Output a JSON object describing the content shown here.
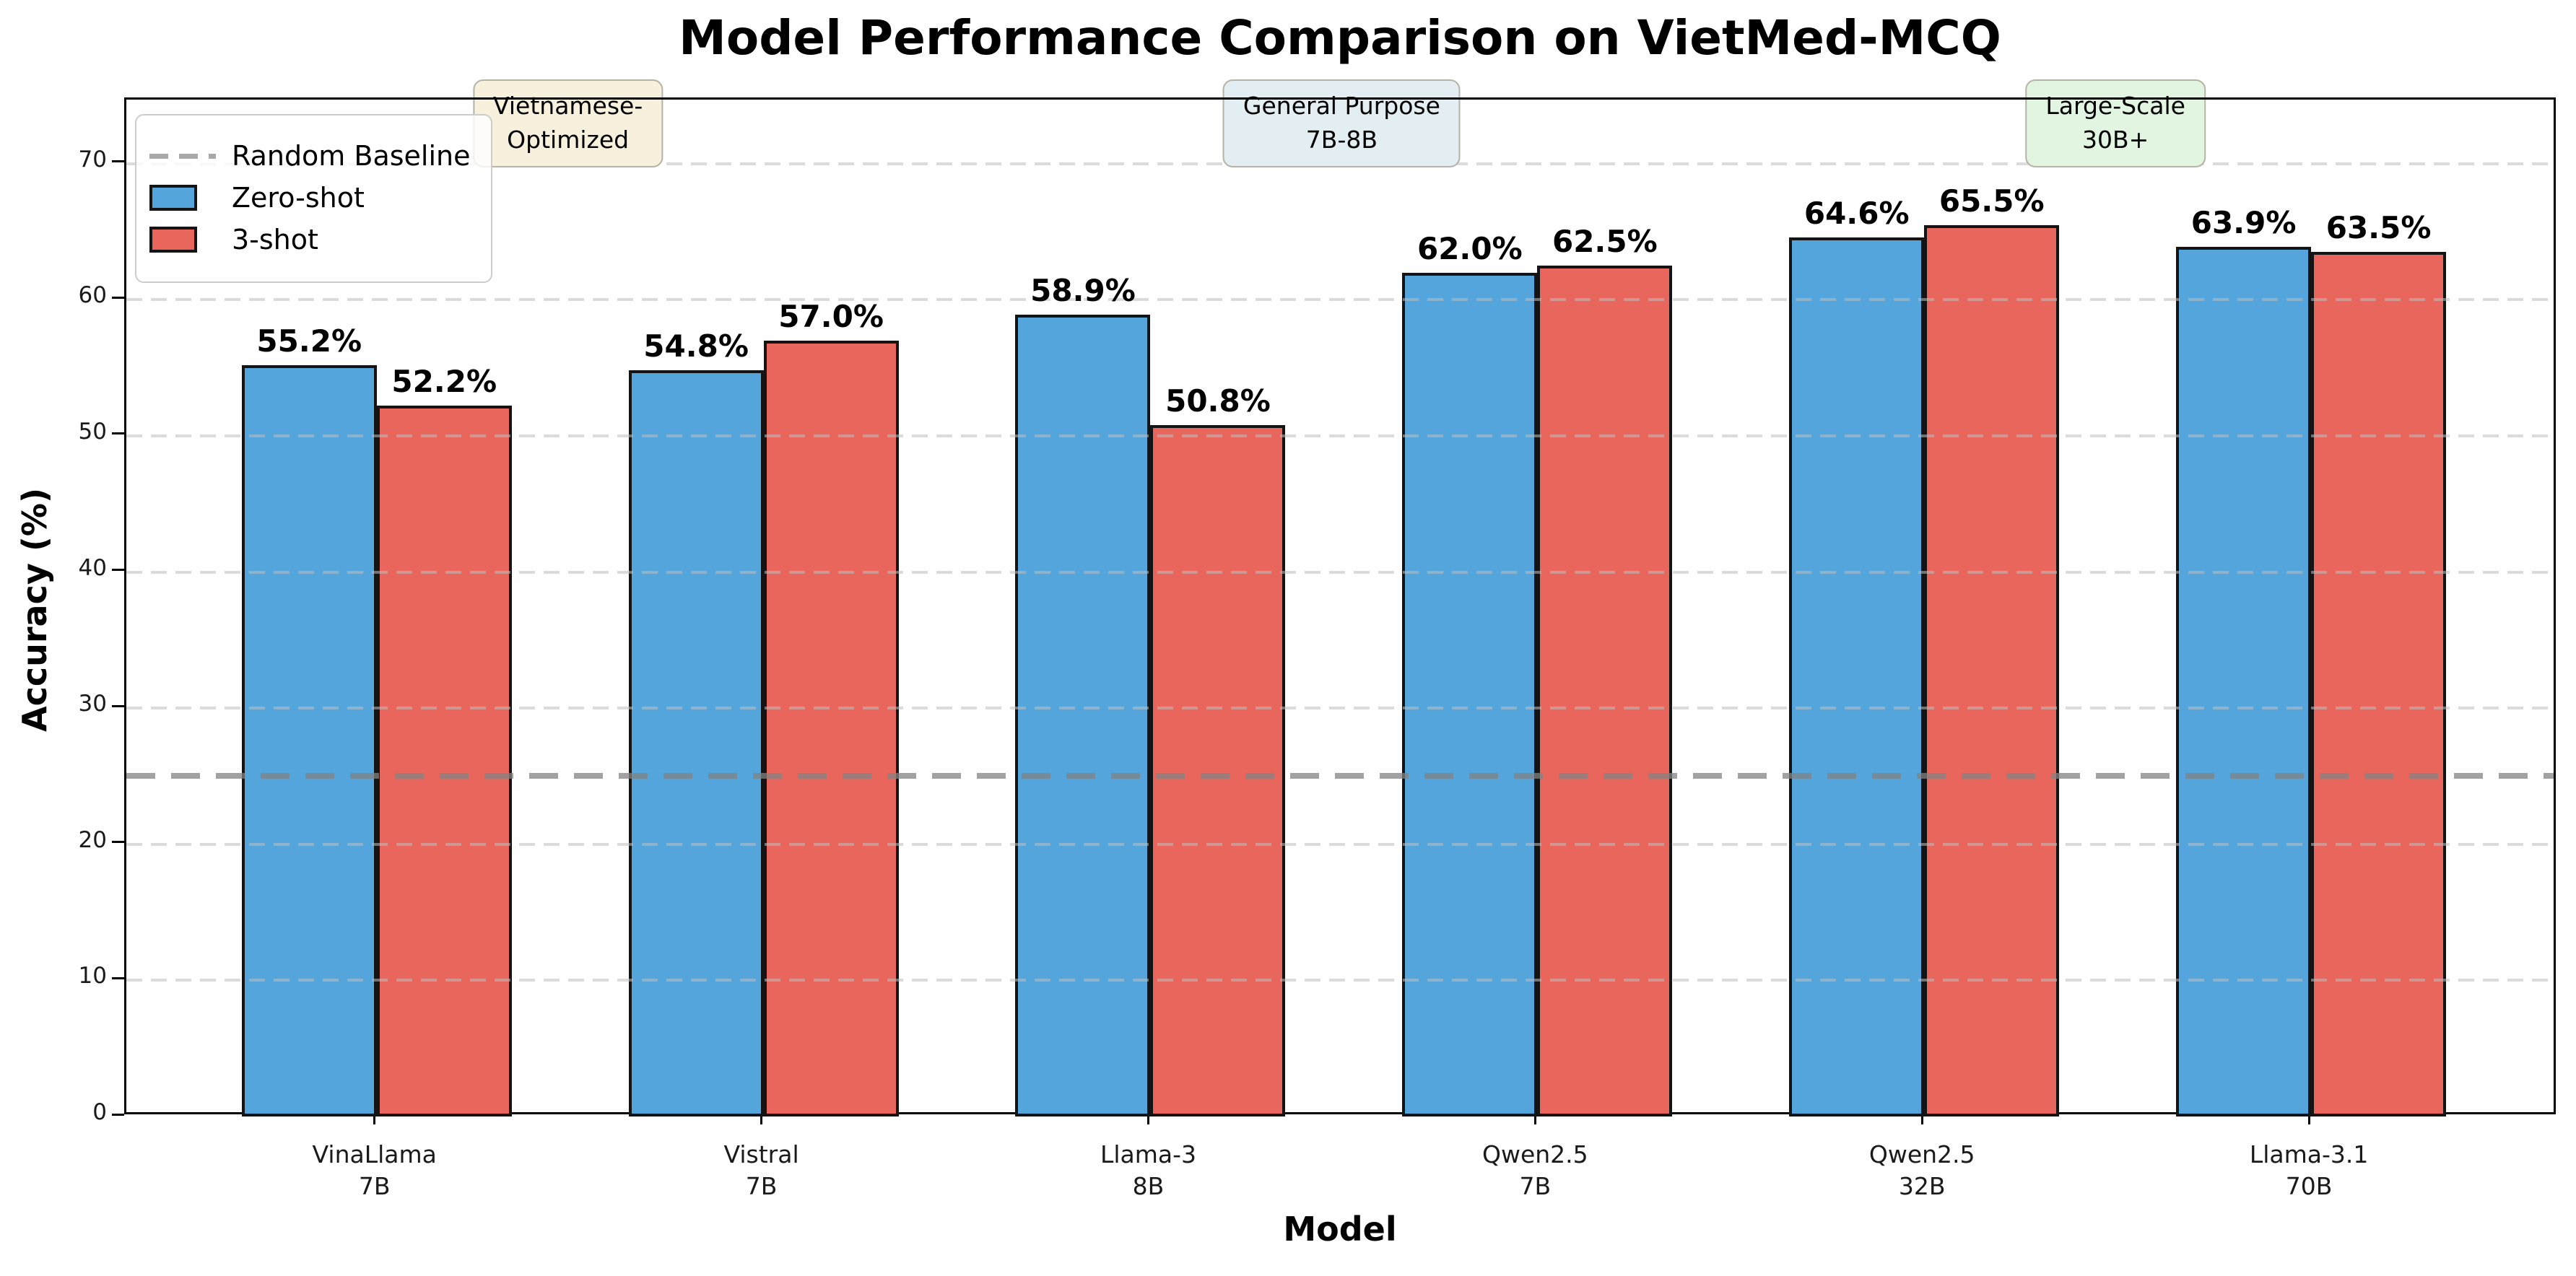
{
  "title": "Model Performance Comparison on VietMed-MCQ",
  "chart_data": {
    "type": "bar",
    "title": "Model Performance Comparison on VietMed-MCQ",
    "xlabel": "Model",
    "ylabel": "Accuracy (%)",
    "ylim": [
      0,
      74.7
    ],
    "yticks": [
      0,
      10,
      20,
      30,
      40,
      50,
      60,
      70
    ],
    "grid": "horizontal-dashed",
    "legend_position": "upper-left",
    "categories": [
      {
        "line1": "VinaLlama",
        "line2": "7B"
      },
      {
        "line1": "Vistral",
        "line2": "7B"
      },
      {
        "line1": "Llama-3",
        "line2": "8B"
      },
      {
        "line1": "Qwen2.5",
        "line2": "7B"
      },
      {
        "line1": "Qwen2.5",
        "line2": "32B"
      },
      {
        "line1": "Llama-3.1",
        "line2": "70B"
      }
    ],
    "series": [
      {
        "name": "Zero-shot",
        "color": "#54a5dc",
        "values": [
          55.2,
          54.8,
          58.9,
          62.0,
          64.6,
          63.9
        ]
      },
      {
        "name": "3-shot",
        "color": "#e8665c",
        "values": [
          52.2,
          57.0,
          50.8,
          62.5,
          65.5,
          63.5
        ]
      }
    ],
    "value_label_suffix": "%",
    "baseline": {
      "label": "Random Baseline",
      "value": 25
    },
    "annotations": [
      {
        "line1": "Vietnamese-",
        "line2": "Optimized",
        "anchor_category": 0.5,
        "bg": "#f7f0dd"
      },
      {
        "line1": "General Purpose",
        "line2": "7B-8B",
        "anchor_category": 2.5,
        "bg": "#e3eef3"
      },
      {
        "line1": "Large-Scale",
        "line2": "30B+",
        "anchor_category": 4.5,
        "bg": "#e1f5e1"
      }
    ]
  }
}
